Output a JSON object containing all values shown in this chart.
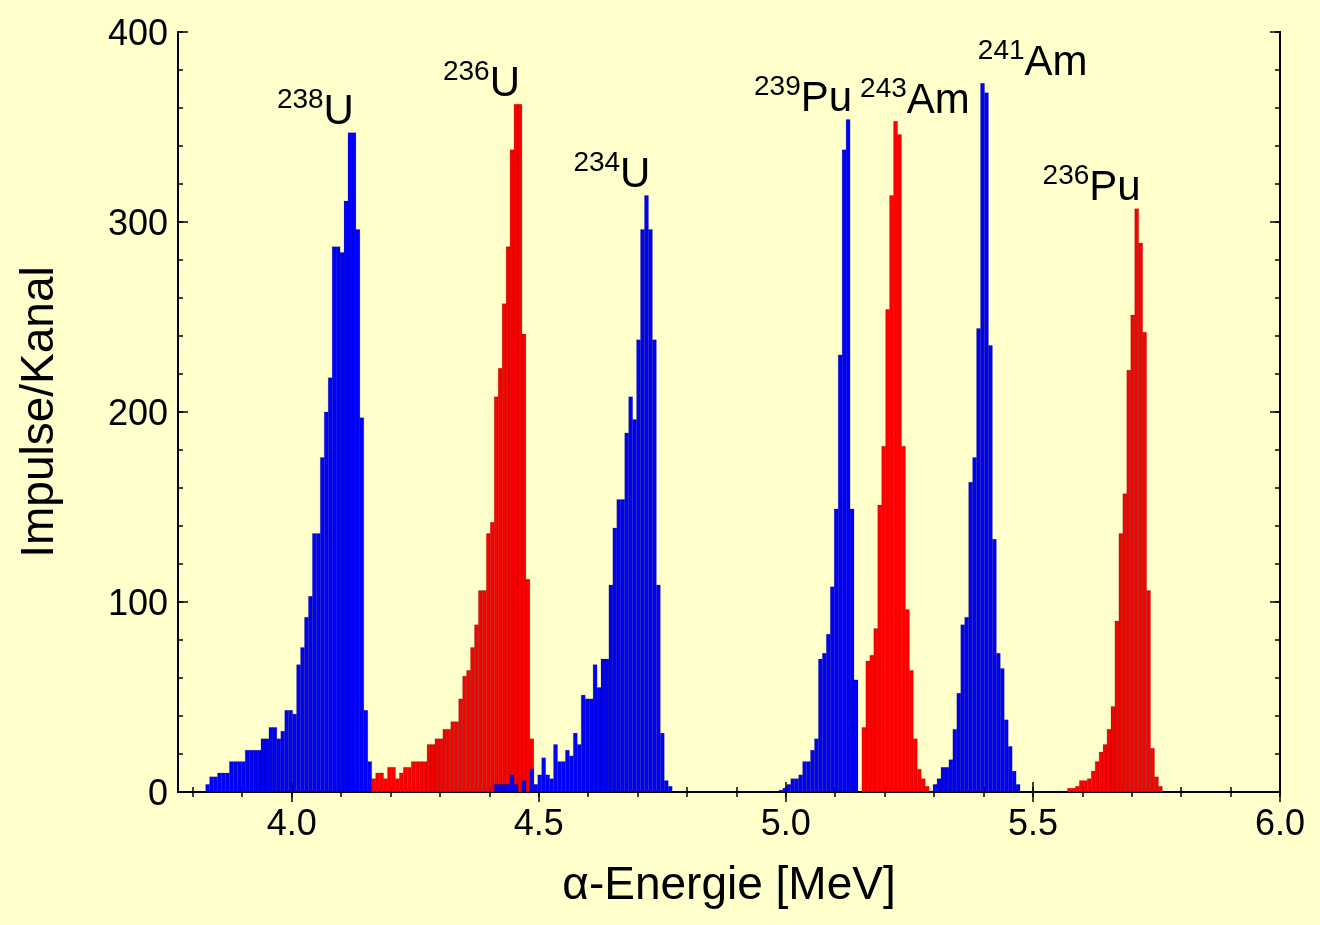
{
  "chart_data": {
    "type": "bar",
    "xlabel": "α-Energie [MeV]",
    "ylabel": "Impulse/Kanal",
    "xlim": [
      3.77,
      6.0
    ],
    "xticks": [
      {
        "value": 4,
        "label": "4.0"
      },
      {
        "value": 4.5,
        "label": "4.5"
      },
      {
        "value": 5,
        "label": "5.0"
      },
      {
        "value": 5.5,
        "label": "5.5"
      },
      {
        "value": 6,
        "label": "6.0"
      }
    ],
    "ylim": [
      0,
      400
    ],
    "yticks": [
      0,
      100,
      200,
      300,
      400
    ],
    "series": [
      {
        "color": "#ff0000",
        "x": [
          4.166,
          4.174,
          4.182,
          4.19,
          4.198,
          4.206,
          4.214,
          4.222,
          4.23,
          4.238,
          4.246,
          4.254,
          4.262,
          4.27,
          4.278,
          4.286,
          4.294,
          4.302,
          4.31,
          4.318,
          4.326,
          4.334,
          4.342,
          4.35,
          4.358,
          4.366,
          4.374,
          4.382,
          4.39,
          4.398,
          4.406,
          4.414,
          4.422,
          4.43,
          4.438,
          4.446,
          4.454,
          4.462,
          4.47,
          4.478,
          4.486,
          5.15,
          5.158,
          5.166,
          5.174,
          5.182,
          5.19,
          5.198,
          5.206,
          5.214,
          5.222,
          5.23,
          5.238,
          5.246,
          5.254,
          5.262,
          5.27,
          5.278,
          5.286,
          5.574,
          5.582,
          5.59,
          5.598,
          5.606,
          5.614,
          5.622,
          5.63,
          5.638,
          5.646,
          5.654,
          5.662,
          5.67,
          5.678,
          5.686,
          5.694,
          5.702,
          5.71,
          5.718,
          5.726,
          5.734,
          5.742,
          5.75,
          5.758
        ],
        "values": [
          7,
          10,
          10,
          7,
          13,
          13,
          7,
          10,
          13,
          13,
          16,
          16,
          16,
          16,
          25,
          25,
          28,
          28,
          33,
          33,
          37,
          37,
          49,
          61,
          64,
          76,
          88,
          106,
          106,
          136,
          142,
          208,
          223,
          257,
          287,
          338,
          362,
          362,
          241,
          112,
          28,
          null,
          34,
          69,
          72,
          86,
          151,
          182,
          254,
          314,
          353,
          346,
          182,
          96,
          64,
          28,
          12,
          7,
          3,
          2,
          2,
          3,
          6,
          6,
          7,
          11,
          16,
          21,
          25,
          33,
          45,
          90,
          136,
          157,
          222,
          251,
          307,
          289,
          242,
          106,
          23,
          8,
          3
        ]
      },
      {
        "color": "#0000ff",
        "x": [
          3.83,
          3.838,
          3.846,
          3.854,
          3.862,
          3.87,
          3.878,
          3.886,
          3.894,
          3.902,
          3.91,
          3.918,
          3.926,
          3.934,
          3.942,
          3.95,
          3.958,
          3.966,
          3.974,
          3.982,
          3.99,
          3.998,
          4.006,
          4.014,
          4.022,
          4.03,
          4.038,
          4.046,
          4.054,
          4.062,
          4.07,
          4.078,
          4.086,
          4.094,
          4.102,
          4.11,
          4.118,
          4.126,
          4.134,
          4.142,
          4.15,
          4.158,
          4.414,
          4.422,
          4.43,
          4.438,
          4.446,
          4.454,
          4.47,
          4.486,
          4.494,
          4.502,
          4.51,
          4.518,
          4.526,
          4.534,
          4.542,
          4.55,
          4.558,
          4.566,
          4.574,
          4.582,
          4.59,
          4.598,
          4.606,
          4.614,
          4.622,
          4.63,
          4.638,
          4.646,
          4.654,
          4.662,
          4.67,
          4.678,
          4.686,
          4.694,
          4.702,
          4.71,
          4.718,
          4.726,
          4.734,
          4.742,
          4.75,
          4.758,
          4.766,
          4.99,
          4.998,
          5.006,
          5.014,
          5.022,
          5.03,
          5.038,
          5.046,
          5.054,
          5.062,
          5.07,
          5.078,
          5.086,
          5.094,
          5.102,
          5.11,
          5.118,
          5.126,
          5.134,
          5.142,
          5.302,
          5.31,
          5.318,
          5.326,
          5.334,
          5.342,
          5.35,
          5.358,
          5.366,
          5.374,
          5.382,
          5.39,
          5.398,
          5.406,
          5.414,
          5.422,
          5.43,
          5.438,
          5.446,
          5.454,
          5.462,
          5.47
        ],
        "values": [
          4,
          8,
          8,
          10,
          10,
          10,
          16,
          16,
          16,
          16,
          22,
          22,
          22,
          22,
          28,
          28,
          34,
          34,
          28,
          32,
          43,
          43,
          41,
          67,
          76,
          92,
          103,
          136,
          136,
          176,
          200,
          218,
          287,
          287,
          284,
          311,
          347,
          347,
          296,
          197,
          43,
          16,
          4,
          4,
          4,
          4,
          9,
          4,
          6,
          12,
          4,
          9,
          18,
          9,
          7,
          25,
          16,
          16,
          22,
          19,
          31,
          25,
          51,
          49,
          49,
          67,
          55,
          70,
          70,
          109,
          139,
          154,
          154,
          189,
          208,
          196,
          238,
          296,
          314,
          296,
          238,
          109,
          31,
          6,
          3,
          1,
          2,
          4,
          7,
          7,
          9,
          16,
          16,
          22,
          28,
          70,
          73,
          83,
          108,
          149,
          230,
          338,
          354,
          149,
          59,
          4,
          7,
          13,
          13,
          17,
          33,
          52,
          88,
          92,
          163,
          176,
          244,
          373,
          368,
          235,
          133,
          73,
          65,
          38,
          24,
          11,
          4
        ]
      }
    ],
    "annotations": [
      "$^{238}$U",
      "$^{236}$U",
      "$^{234}$U",
      "$^{239}$Pu",
      "$^{243}$Am",
      "$^{241}$Am",
      "$^{236}$Pu"
    ]
  }
}
